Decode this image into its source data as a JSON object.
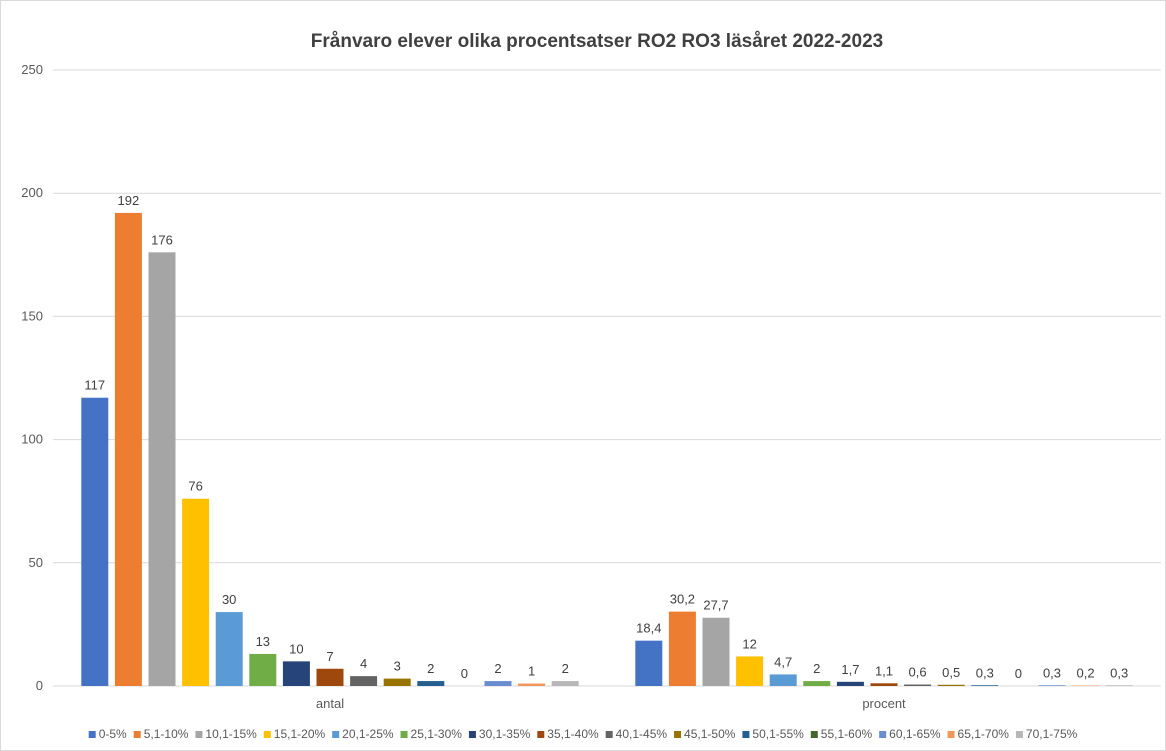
{
  "chart_data": {
    "type": "bar",
    "title": "Frånvaro elever olika procentsatser RO2 RO3 läsåret 2022-2023",
    "categories": [
      "antal",
      "procent"
    ],
    "ylim": [
      0,
      250
    ],
    "yticks": [
      0,
      50,
      100,
      150,
      200,
      250
    ],
    "grid": true,
    "legend_position": "bottom",
    "series": [
      {
        "name": "0-5%",
        "color": "#4472C4",
        "values": [
          117,
          18.4
        ],
        "labels": [
          "117",
          "18,4"
        ]
      },
      {
        "name": "5,1-10%",
        "color": "#ED7D31",
        "values": [
          192,
          30.2
        ],
        "labels": [
          "192",
          "30,2"
        ]
      },
      {
        "name": "10,1-15%",
        "color": "#A5A5A5",
        "values": [
          176,
          27.7
        ],
        "labels": [
          "176",
          "27,7"
        ]
      },
      {
        "name": "15,1-20%",
        "color": "#FFC000",
        "values": [
          76,
          12
        ],
        "labels": [
          "76",
          "12"
        ]
      },
      {
        "name": "20,1-25%",
        "color": "#5B9BD5",
        "values": [
          30,
          4.7
        ],
        "labels": [
          "30",
          "4,7"
        ]
      },
      {
        "name": "25,1-30%",
        "color": "#70AD47",
        "values": [
          13,
          2
        ],
        "labels": [
          "13",
          "2"
        ]
      },
      {
        "name": "30,1-35%",
        "color": "#264478",
        "values": [
          10,
          1.7
        ],
        "labels": [
          "10",
          "1,7"
        ]
      },
      {
        "name": "35,1-40%",
        "color": "#9E480E",
        "values": [
          7,
          1.1
        ],
        "labels": [
          "7",
          "1,1"
        ]
      },
      {
        "name": "40,1-45%",
        "color": "#636363",
        "values": [
          4,
          0.6
        ],
        "labels": [
          "4",
          "0,6"
        ]
      },
      {
        "name": "45,1-50%",
        "color": "#997300",
        "values": [
          3,
          0.5
        ],
        "labels": [
          "3",
          "0,5"
        ]
      },
      {
        "name": "50,1-55%",
        "color": "#255E91",
        "values": [
          2,
          0.3
        ],
        "labels": [
          "2",
          "0,3"
        ]
      },
      {
        "name": "55,1-60%",
        "color": "#43682B",
        "values": [
          0,
          0
        ],
        "labels": [
          "0",
          "0"
        ]
      },
      {
        "name": "60,1-65%",
        "color": "#698ED0",
        "values": [
          2,
          0.3
        ],
        "labels": [
          "2",
          "0,3"
        ]
      },
      {
        "name": "65,1-70%",
        "color": "#F1975A",
        "values": [
          1,
          0.2
        ],
        "labels": [
          "1",
          "0,2"
        ]
      },
      {
        "name": "70,1-75%",
        "color": "#B7B7B7",
        "values": [
          2,
          0.3
        ],
        "labels": [
          "2",
          "0,3"
        ]
      }
    ]
  }
}
